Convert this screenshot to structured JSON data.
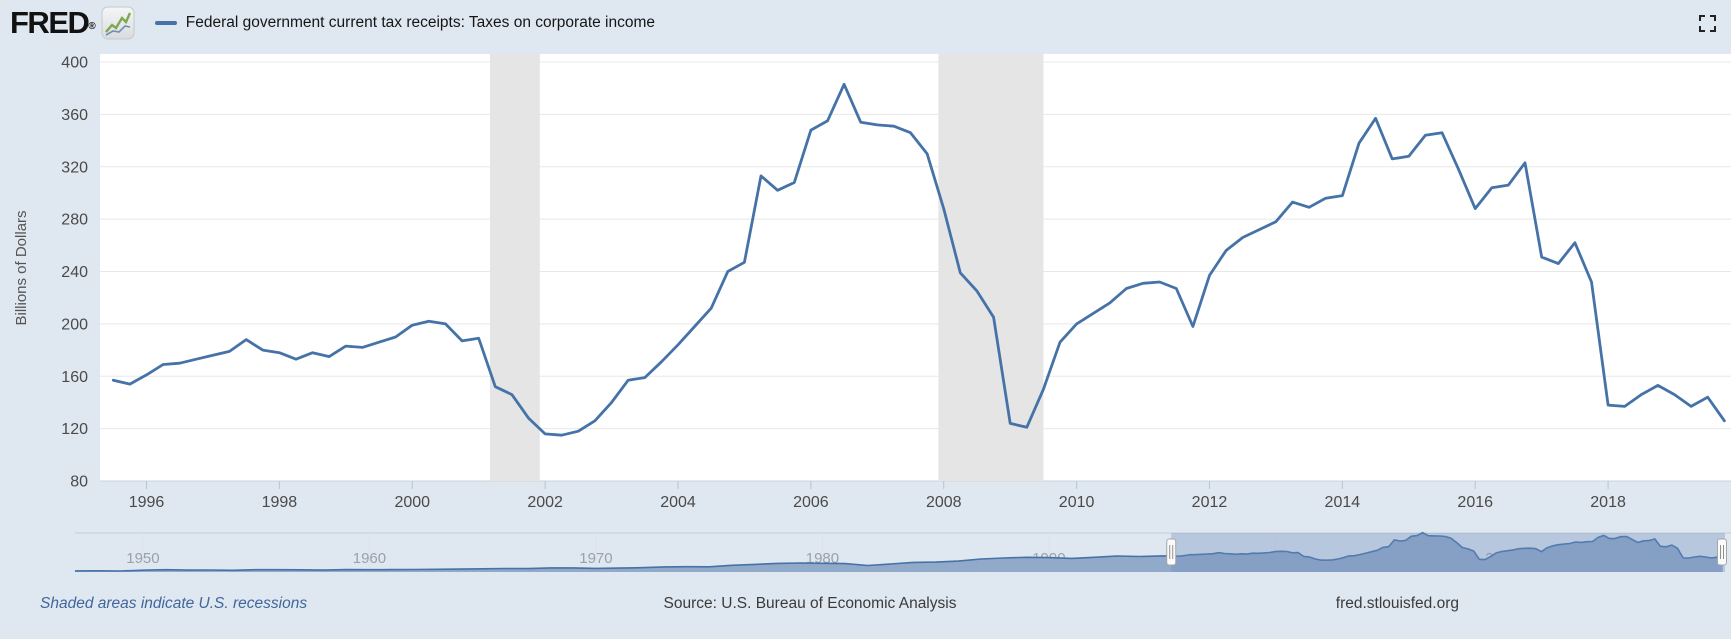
{
  "header": {
    "logo_text": "FRED",
    "logo_registered": "®",
    "legend_label": "Federal government current tax receipts: Taxes on corporate income"
  },
  "icons": {
    "logo_chart": "line-chart",
    "fullscreen": "expand-corners"
  },
  "colors": {
    "background": "#dfe7f0",
    "plot_background": "#ffffff",
    "line": "#4572a7",
    "gridline": "#e8e8e8",
    "axis_line": "#ccd3da",
    "tick_mark": "#b9c4d1",
    "tick_label": "#4a4a4a",
    "axis_title": "#555555",
    "recession_band": "#e5e5e5",
    "mini_label": "#9aa1a8",
    "mini_area_fill": "#92aac9",
    "mini_selection": "rgba(110,140,190,0.35)",
    "footer_link": "#41669c"
  },
  "chart_data": {
    "type": "line",
    "title": "Federal government current tax receipts: Taxes on corporate income",
    "ylabel": "Billions of Dollars",
    "ylim": [
      80,
      400
    ],
    "yticks": [
      80,
      120,
      160,
      200,
      240,
      280,
      320,
      360,
      400
    ],
    "xlim": [
      1995.3,
      2019.85
    ],
    "xticks": [
      1996,
      1998,
      2000,
      2002,
      2004,
      2006,
      2008,
      2010,
      2012,
      2014,
      2016,
      2018
    ],
    "grid": "horizontal",
    "legend_position": "top",
    "x_start": 1995.5,
    "x_step": 0.25,
    "series": [
      {
        "name": "Federal government current tax receipts: Taxes on corporate income",
        "units": "Billions of Dollars",
        "frequency": "Quarterly",
        "values": [
          157,
          154,
          161,
          169,
          170,
          173,
          176,
          179,
          188,
          180,
          178,
          173,
          178,
          175,
          183,
          182,
          186,
          190,
          199,
          202,
          200,
          187,
          189,
          152,
          146,
          128,
          116,
          115,
          118,
          126,
          140,
          157,
          159,
          171,
          184,
          198,
          212,
          240,
          247,
          313,
          302,
          308,
          348,
          355,
          383,
          354,
          352,
          351,
          346,
          330,
          288,
          239,
          225,
          205,
          124,
          121,
          150,
          186,
          200,
          208,
          216,
          227,
          231,
          232,
          227,
          198,
          237,
          256,
          266,
          272,
          278,
          293,
          289,
          296,
          298,
          338,
          357,
          326,
          328,
          344,
          346,
          318,
          288,
          304,
          306,
          323,
          251,
          246,
          262,
          232,
          138,
          137,
          146,
          153,
          146,
          137,
          144,
          126
        ]
      }
    ],
    "recessions": [
      [
        2001.17,
        2001.92
      ],
      [
        2007.92,
        2009.5
      ]
    ]
  },
  "mini_chart": {
    "type": "area",
    "role": "range-selector",
    "xlim": [
      1947,
      2019.85
    ],
    "decade_labels": [
      1950,
      1960,
      1970,
      1980,
      1990,
      2000,
      2010
    ],
    "annual_x_start": 1947,
    "annual_values": [
      11,
      12,
      10,
      18,
      22,
      19,
      20,
      17,
      22,
      22,
      21,
      19,
      23,
      22,
      23,
      24,
      26,
      28,
      31,
      34,
      33,
      40,
      40,
      35,
      38,
      42,
      50,
      52,
      51,
      65,
      74,
      84,
      88,
      85,
      82,
      63,
      78,
      94,
      97,
      106,
      127,
      137,
      143,
      140,
      133,
      143,
      156,
      151,
      157
    ],
    "selection": [
      1995.4,
      2019.85
    ]
  },
  "footer": {
    "recession_note": "Shaded areas indicate U.S. recessions",
    "source": "Source: U.S. Bureau of Economic Analysis",
    "site": "fred.stlouisfed.org"
  }
}
